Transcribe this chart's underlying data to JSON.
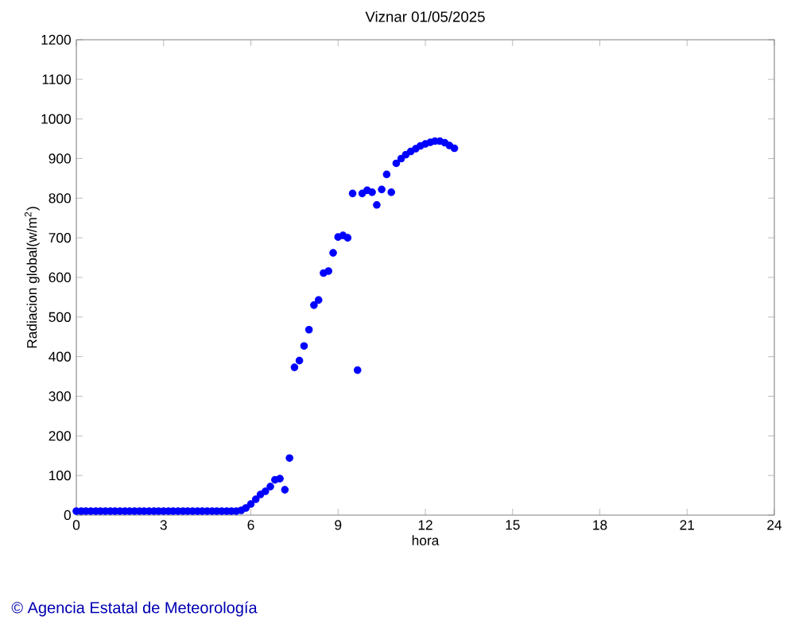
{
  "chart_data": {
    "type": "scatter",
    "title": "Viznar 01/05/2025",
    "xlabel": "hora",
    "ylabel": "Radiacion global(w/m$^{2}$)",
    "x": [
      0,
      0.17,
      0.33,
      0.5,
      0.67,
      0.83,
      1,
      1.17,
      1.33,
      1.5,
      1.67,
      1.83,
      2,
      2.17,
      2.33,
      2.5,
      2.67,
      2.83,
      3,
      3.17,
      3.33,
      3.5,
      3.67,
      3.83,
      4,
      4.17,
      4.33,
      4.5,
      4.67,
      4.83,
      5,
      5.17,
      5.33,
      5.5,
      5.67,
      5.83,
      6,
      6.17,
      6.33,
      6.5,
      6.67,
      6.83,
      7,
      7.17,
      7.33,
      7.5,
      7.67,
      7.83,
      8,
      8.17,
      8.33,
      8.5,
      8.67,
      8.83,
      9,
      9.17,
      9.33,
      9.5,
      9.67,
      9.83,
      10,
      10.17,
      10.33,
      10.5,
      10.67,
      10.83,
      11,
      11.17,
      11.33,
      11.5,
      11.67,
      11.83,
      12,
      12.17,
      12.33,
      12.5,
      12.67,
      12.83,
      13
    ],
    "series": [
      {
        "color": "#0000ff",
        "values": [
          10,
          10,
          10,
          10,
          10,
          10,
          10,
          10,
          10,
          10,
          10,
          10,
          10,
          10,
          10,
          10,
          10,
          10,
          10,
          10,
          10,
          10,
          10,
          10,
          10,
          10,
          10,
          10,
          10,
          10,
          10,
          10,
          10,
          10,
          12,
          18,
          28,
          40,
          52,
          60,
          72,
          89,
          92,
          64,
          144,
          373,
          390,
          427,
          468,
          530,
          543,
          611,
          616,
          662,
          702,
          706,
          700,
          812,
          366,
          812,
          820,
          815,
          783,
          822,
          860,
          815,
          888,
          900,
          910,
          918,
          925,
          932,
          937,
          941,
          944,
          944,
          940,
          933,
          926
        ]
      }
    ],
    "xlim": [
      0,
      24
    ],
    "xticks": [
      0,
      3,
      6,
      9,
      12,
      15,
      18,
      21,
      24
    ],
    "ylim": [
      0,
      1200
    ],
    "yticks": [
      0,
      100,
      200,
      300,
      400,
      500,
      600,
      700,
      800,
      900,
      1000,
      1100,
      1200
    ],
    "marker": "circle",
    "grid": false,
    "annotations": [
      "© Agencia Estatal de Meteorología"
    ]
  }
}
